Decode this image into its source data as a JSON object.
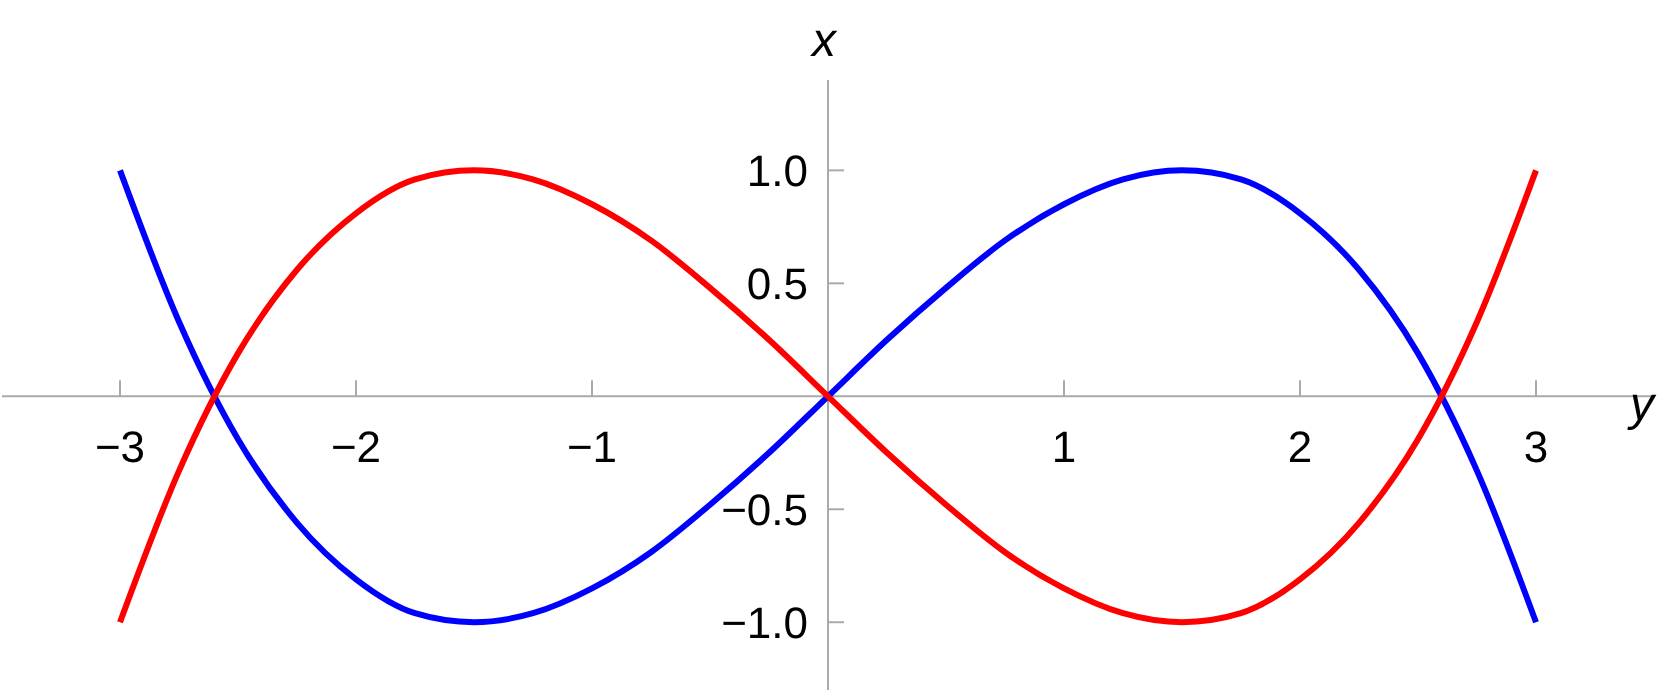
{
  "chart_data": {
    "type": "line",
    "xlabel": "y",
    "ylabel": "x",
    "xlim": [
      -3.5,
      3.5
    ],
    "ylim": [
      -1.3,
      1.4
    ],
    "xticks": [
      {
        "value": -3,
        "label": "−3"
      },
      {
        "value": -2,
        "label": "−2"
      },
      {
        "value": -1,
        "label": "−1"
      },
      1,
      2,
      3
    ],
    "yticks": [
      {
        "value": -1,
        "label": "−1.0"
      },
      {
        "value": -0.5,
        "label": "−0.5"
      },
      {
        "value": 0.5,
        "label": "0.5"
      },
      {
        "value": 1,
        "label": "1.0"
      }
    ],
    "x": [
      -3,
      -2.75,
      -2.5,
      -2.25,
      -2,
      -1.75,
      -1.5,
      -1.25,
      -1,
      -0.75,
      -0.5,
      -0.25,
      0,
      0.25,
      0.5,
      0.75,
      1,
      1.25,
      1.5,
      1.75,
      2,
      2.25,
      2.5,
      2.75,
      3
    ],
    "series": [
      {
        "color": "#0000ff",
        "values": [
          1,
          0.33,
          -0.19,
          -0.56,
          -0.81,
          -0.96,
          -1,
          -0.96,
          -0.85,
          -0.69,
          -0.48,
          -0.25,
          0,
          0.25,
          0.48,
          0.69,
          0.85,
          0.96,
          1,
          0.96,
          0.81,
          0.56,
          0.19,
          -0.33,
          -1
        ]
      },
      {
        "color": "#ff0000",
        "values": [
          -1,
          -0.33,
          0.19,
          0.56,
          0.81,
          0.96,
          1,
          0.96,
          0.85,
          0.69,
          0.48,
          0.25,
          0,
          -0.25,
          -0.48,
          -0.69,
          -0.85,
          -0.96,
          -1,
          -0.96,
          -0.81,
          -0.56,
          -0.19,
          0.33,
          1
        ]
      }
    ],
    "marker": "none",
    "line_style": "solid"
  }
}
